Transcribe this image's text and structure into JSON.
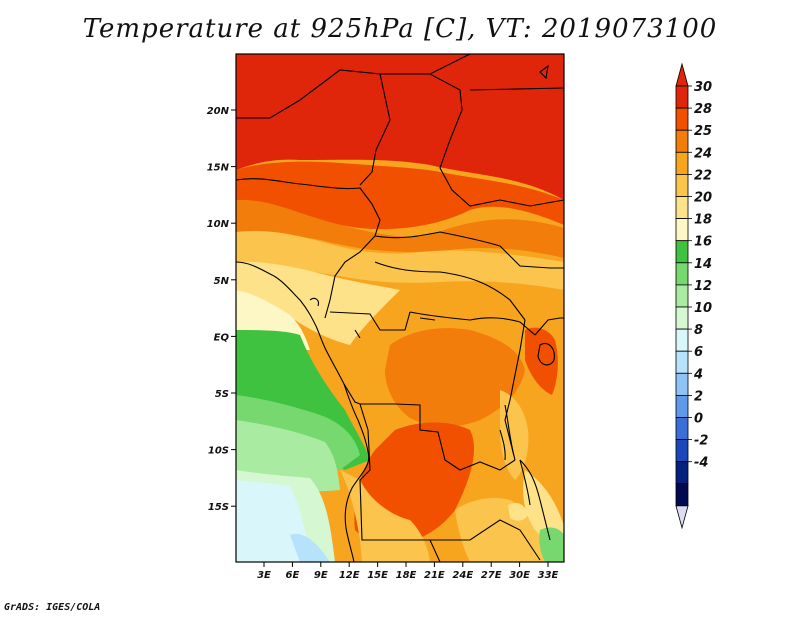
{
  "title": "Temperature at 925hPa [C], VT: 2019073100",
  "footer": "GrADS: IGES/COLA",
  "map": {
    "lat_labels": [
      "20N",
      "15N",
      "10N",
      "5N",
      "EQ",
      "5S",
      "10S",
      "15S"
    ],
    "lon_labels": [
      "3E",
      "6E",
      "9E",
      "12E",
      "15E",
      "18E",
      "21E",
      "24E",
      "27E",
      "30E",
      "33E"
    ]
  },
  "colorbar": {
    "labels": [
      "30",
      "28",
      "25",
      "24",
      "22",
      "20",
      "18",
      "16",
      "14",
      "12",
      "10",
      "8",
      "6",
      "4",
      "2",
      "0",
      "-2",
      "-4"
    ],
    "colors": [
      "#e0260a",
      "#f05000",
      "#f27d0a",
      "#f7a51f",
      "#fbc44d",
      "#fde28a",
      "#fdf6c5",
      "#3fc23f",
      "#78d870",
      "#a9eba0",
      "#d5f8d2",
      "#d9f6fb",
      "#b6e2fb",
      "#8ec3f5",
      "#5f99ea",
      "#3b6fd8",
      "#1a47ba",
      "#06207f",
      "#020a52",
      "#dcdcf4"
    ],
    "top_color": "#e0260a",
    "bottom_color": "#dcdcf4"
  }
}
